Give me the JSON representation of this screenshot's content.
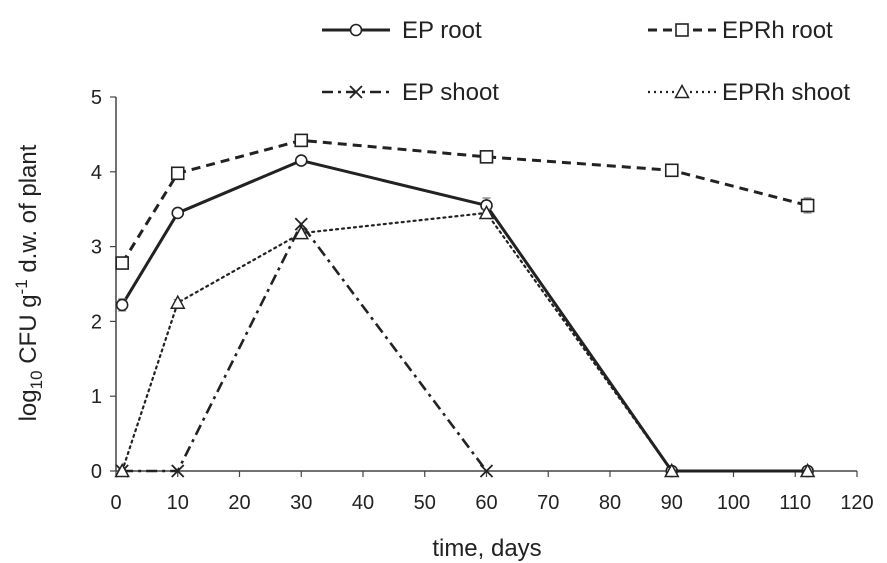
{
  "chart_data": {
    "type": "line",
    "title": "",
    "xlabel": "time, days",
    "ylabel_parts": {
      "pre": "log",
      "sub": "10",
      "mid": " CFU g",
      "sup": "-1",
      "post": " d.w. of plant"
    },
    "xlim": [
      0,
      120
    ],
    "ylim": [
      0,
      5
    ],
    "xticks": [
      0,
      10,
      20,
      30,
      40,
      50,
      60,
      70,
      80,
      90,
      100,
      110,
      120
    ],
    "yticks": [
      0,
      1,
      2,
      3,
      4,
      5
    ],
    "grid": false,
    "legend_placement": "top",
    "series": [
      {
        "name": "EP root",
        "x": [
          1,
          10,
          30,
          60,
          90,
          112
        ],
        "y": [
          2.22,
          3.45,
          4.15,
          3.55,
          0,
          0
        ],
        "err": [
          0.08,
          0.04,
          0.04,
          0.1,
          0.02,
          0.02
        ],
        "marker": "circle",
        "dash": "solid"
      },
      {
        "name": "EPRh root",
        "x": [
          1,
          10,
          30,
          60,
          90,
          112
        ],
        "y": [
          2.78,
          3.98,
          4.42,
          4.2,
          4.02,
          3.55
        ],
        "err": [
          0.06,
          0.04,
          0.04,
          0.03,
          0.03,
          0.1
        ],
        "marker": "square",
        "dash": "dashed"
      },
      {
        "name": "EP shoot",
        "x": [
          1,
          10,
          30,
          60
        ],
        "y": [
          0,
          0,
          3.3,
          0
        ],
        "err": [
          0,
          0,
          0,
          0
        ],
        "marker": "x",
        "dash": "dashdot"
      },
      {
        "name": "EPRh shoot",
        "x": [
          1,
          10,
          30,
          60,
          90,
          112
        ],
        "y": [
          0,
          2.25,
          3.18,
          3.45,
          0,
          0
        ],
        "err": [
          0.02,
          0.04,
          0.04,
          0.05,
          0.02,
          0.02
        ],
        "marker": "triangle",
        "dash": "dotted"
      }
    ]
  }
}
